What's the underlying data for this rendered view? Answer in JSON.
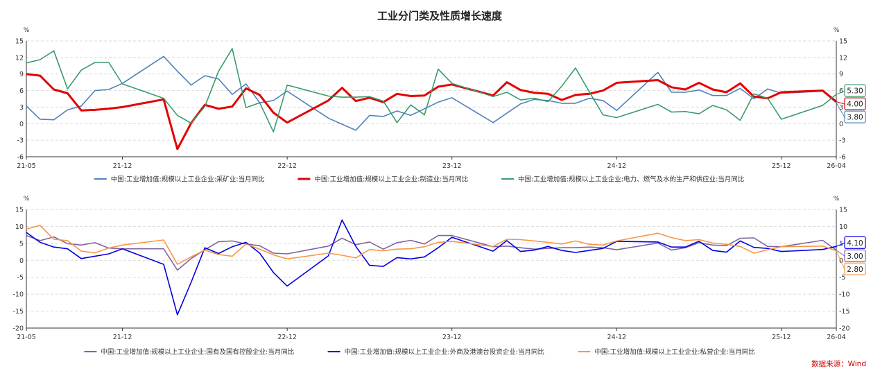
{
  "chart_data": [
    {
      "type": "line",
      "title": "工业分门类及性质增长速度",
      "y_unit": "%",
      "ylim": [
        -6,
        15
      ],
      "yticks": [
        -6,
        -3,
        0,
        3,
        6,
        9,
        12,
        15
      ],
      "x_tick_labels": [
        "21-05",
        "21-12",
        "22-12",
        "23-12",
        "24-12",
        "25-12",
        "26-04"
      ],
      "grid": "horizontal dashed",
      "legend_position": "bottom",
      "x": [
        "21-05",
        "21-06",
        "21-07",
        "21-08",
        "21-09",
        "21-10",
        "21-11",
        "21-12",
        "22-03",
        "22-04",
        "22-05",
        "22-06",
        "22-07",
        "22-08",
        "22-09",
        "22-10",
        "22-11",
        "22-12",
        "23-03",
        "23-04",
        "23-05",
        "23-06",
        "23-07",
        "23-08",
        "23-09",
        "23-10",
        "23-11",
        "23-12",
        "24-03",
        "24-04",
        "24-05",
        "24-06",
        "24-07",
        "24-08",
        "24-09",
        "24-10",
        "24-11",
        "24-12",
        "25-03",
        "25-04",
        "25-05",
        "25-06",
        "25-07",
        "25-08",
        "25-09",
        "25-10",
        "25-11",
        "25-12",
        "26-03",
        "26-04"
      ],
      "series": [
        {
          "name": "中国:工业增加值:规模以上工业企业:采矿业:当月同比",
          "color": "#4f81bd",
          "values": [
            3.2,
            0.8,
            0.7,
            2.5,
            3.2,
            6.0,
            6.2,
            7.3,
            12.2,
            9.5,
            7.0,
            8.7,
            8.1,
            5.3,
            7.2,
            3.8,
            4.2,
            5.9,
            1.0,
            -0.1,
            -1.2,
            1.5,
            1.3,
            2.3,
            1.5,
            2.7,
            3.9,
            4.7,
            0.2,
            1.9,
            3.6,
            4.4,
            4.2,
            3.7,
            3.7,
            4.6,
            4.2,
            2.4,
            9.3,
            5.7,
            5.7,
            6.1,
            5.1,
            5.1,
            6.4,
            4.5,
            6.3,
            5.5,
            5.9,
            3.8
          ]
        },
        {
          "name": "中国:工业增加值:规模以上工业企业:制造业:当月同比",
          "color": "#e30000",
          "thick": true,
          "values": [
            9.0,
            8.7,
            6.2,
            5.5,
            2.4,
            2.5,
            2.7,
            3.0,
            4.4,
            -4.6,
            0.1,
            3.4,
            2.7,
            3.1,
            6.4,
            5.2,
            2.0,
            0.2,
            4.2,
            6.5,
            4.1,
            4.7,
            3.9,
            5.4,
            5.0,
            5.1,
            6.7,
            7.1,
            5.1,
            7.5,
            6.1,
            5.6,
            5.4,
            4.3,
            5.2,
            5.4,
            6.0,
            7.4,
            7.9,
            6.6,
            6.2,
            7.4,
            6.2,
            5.7,
            7.3,
            4.9,
            4.6,
            5.7,
            6.0,
            4.0
          ]
        },
        {
          "name": "中国:工业增加值:规模以上工业企业:电力、燃气及水的生产和供应业:当月同比",
          "color": "#3a9b6c",
          "values": [
            11.0,
            11.6,
            13.2,
            6.3,
            9.7,
            11.1,
            11.1,
            7.2,
            4.6,
            1.5,
            0.1,
            3.1,
            9.5,
            13.6,
            2.9,
            3.8,
            -1.5,
            7.0,
            5.0,
            4.8,
            4.8,
            4.9,
            4.1,
            0.2,
            3.4,
            1.6,
            9.9,
            7.3,
            4.9,
            5.7,
            4.3,
            4.6,
            4.0,
            6.8,
            10.1,
            5.8,
            1.6,
            1.1,
            3.5,
            2.1,
            2.2,
            1.8,
            3.3,
            2.5,
            0.6,
            5.4,
            4.6,
            0.8,
            3.3,
            5.3
          ]
        }
      ],
      "end_labels": [
        "5.30",
        "4.00",
        "3.80"
      ]
    },
    {
      "type": "line",
      "y_unit": "%",
      "ylim": [
        -20,
        15
      ],
      "yticks": [
        -20,
        -15,
        -10,
        -5,
        0,
        5,
        10,
        15
      ],
      "x_tick_labels": [
        "21-05",
        "21-12",
        "22-12",
        "23-12",
        "24-12",
        "25-12",
        "26-04"
      ],
      "grid": "horizontal dashed",
      "legend_position": "bottom",
      "x": [
        "21-05",
        "21-06",
        "21-07",
        "21-08",
        "21-09",
        "21-10",
        "21-11",
        "21-12",
        "22-03",
        "22-04",
        "22-05",
        "22-06",
        "22-07",
        "22-08",
        "22-09",
        "22-10",
        "22-11",
        "22-12",
        "23-03",
        "23-04",
        "23-05",
        "23-06",
        "23-07",
        "23-08",
        "23-09",
        "23-10",
        "23-11",
        "23-12",
        "24-03",
        "24-04",
        "24-05",
        "24-06",
        "24-07",
        "24-08",
        "24-09",
        "24-10",
        "24-11",
        "24-12",
        "25-03",
        "25-04",
        "25-05",
        "25-06",
        "25-07",
        "25-08",
        "25-09",
        "25-10",
        "25-11",
        "25-12",
        "26-03",
        "26-04"
      ],
      "series": [
        {
          "name": "中国:工业增加值:规模以上工业企业:国有及国有控股企业:当月同比",
          "color": "#8064a2",
          "values": [
            7.3,
            5.8,
            6.9,
            4.9,
            4.5,
            5.2,
            3.6,
            3.4,
            3.4,
            -2.9,
            0.5,
            3.1,
            5.5,
            5.7,
            4.8,
            4.3,
            2.1,
            1.9,
            4.2,
            6.5,
            4.6,
            5.4,
            3.3,
            5.2,
            5.9,
            4.8,
            7.3,
            7.3,
            4.0,
            4.2,
            3.7,
            3.3,
            3.5,
            3.7,
            3.7,
            3.9,
            3.7,
            3.1,
            5.1,
            3.0,
            3.7,
            5.2,
            4.5,
            4.3,
            6.5,
            6.6,
            4.1,
            4.0,
            5.9,
            3.0
          ]
        },
        {
          "name": "中国:工业增加值:规模以上工业企业:外商及港澳台投资企业:当月同比",
          "color": "#0000e0",
          "values": [
            8.2,
            5.3,
            3.9,
            3.4,
            0.5,
            1.2,
            1.9,
            3.4,
            -1.2,
            -16.1,
            -6.5,
            3.7,
            2.0,
            4.0,
            5.3,
            2.1,
            -3.6,
            -7.6,
            1.3,
            11.9,
            4.1,
            -1.5,
            -1.8,
            0.8,
            0.4,
            1.0,
            3.7,
            6.8,
            2.7,
            5.8,
            2.6,
            3.0,
            4.1,
            2.9,
            2.3,
            2.9,
            3.5,
            5.6,
            5.4,
            3.9,
            3.9,
            5.6,
            2.9,
            2.4,
            5.7,
            3.8,
            3.5,
            2.6,
            3.2,
            4.1
          ]
        },
        {
          "name": "中国:工业增加值:规模以上工业企业:私营企业:当月同比",
          "color": "#f79646",
          "values": [
            9.2,
            10.3,
            6.2,
            5.8,
            2.7,
            2.2,
            3.6,
            4.5,
            6.0,
            -1.2,
            1.0,
            3.0,
            1.7,
            1.2,
            4.8,
            3.3,
            1.6,
            0.4,
            2.1,
            1.5,
            0.7,
            3.2,
            2.8,
            3.3,
            3.4,
            4.0,
            5.3,
            5.6,
            4.1,
            6.2,
            6.1,
            5.7,
            5.3,
            4.8,
            5.7,
            4.7,
            4.5,
            5.7,
            8.0,
            6.7,
            5.8,
            6.1,
            5.1,
            4.7,
            4.1,
            2.1,
            3.1,
            4.0,
            4.2,
            2.8
          ]
        }
      ],
      "end_labels": [
        "4.10",
        "3.00",
        "2.80"
      ]
    }
  ],
  "source_text": "数据来源：Wind"
}
